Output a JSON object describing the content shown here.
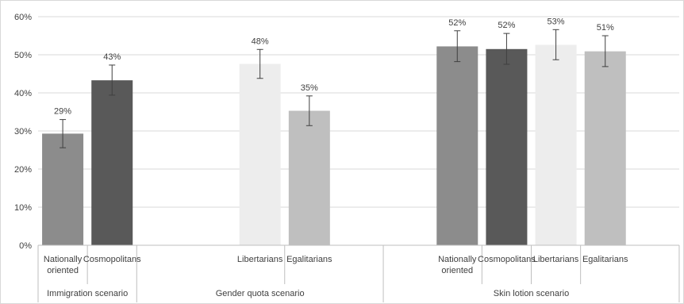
{
  "chart_data": {
    "type": "bar",
    "title": "",
    "xlabel": "",
    "ylabel": "",
    "ylim": [
      0,
      60
    ],
    "yticks": [
      "0%",
      "10%",
      "20%",
      "30%",
      "40%",
      "50%",
      "60%"
    ],
    "grid": true,
    "legend": "none",
    "groups": [
      {
        "name": "Immigration scenario",
        "bars": [
          {
            "category": [
              "Nationally",
              "oriented"
            ],
            "value": 29.3,
            "label": "29%",
            "err_low": 25.6,
            "err_high": 33.0,
            "color": "#8c8c8c"
          },
          {
            "category": [
              "Cosmopolitans"
            ],
            "value": 43.3,
            "label": "43%",
            "err_low": 39.4,
            "err_high": 47.3,
            "color": "#595959"
          }
        ]
      },
      {
        "name": "Gender quota scenario",
        "bars": [
          {
            "category": [
              "Libertarians"
            ],
            "value": 47.6,
            "label": "48%",
            "err_low": 43.8,
            "err_high": 51.4,
            "color": "#ededed"
          },
          {
            "category": [
              "Egalitarians"
            ],
            "value": 35.3,
            "label": "35%",
            "err_low": 31.4,
            "err_high": 39.2,
            "color": "#bfbfbf"
          }
        ]
      },
      {
        "name": "Skin lotion scenario",
        "bars": [
          {
            "category": [
              "Nationally",
              "oriented"
            ],
            "value": 52.2,
            "label": "52%",
            "err_low": 48.2,
            "err_high": 56.3,
            "color": "#8c8c8c"
          },
          {
            "category": [
              "Cosmopolitans"
            ],
            "value": 51.5,
            "label": "52%",
            "err_low": 47.5,
            "err_high": 55.6,
            "color": "#595959"
          },
          {
            "category": [
              "Libertarians"
            ],
            "value": 52.6,
            "label": "53%",
            "err_low": 48.7,
            "err_high": 56.6,
            "color": "#ededed"
          },
          {
            "category": [
              "Egalitarians"
            ],
            "value": 50.9,
            "label": "51%",
            "err_low": 46.9,
            "err_high": 55.0,
            "color": "#bfbfbf"
          }
        ]
      }
    ],
    "colors": {
      "gridline": "#d9d9d9",
      "axis": "#bfbfbf",
      "error_bar": "#404040",
      "text": "#404040"
    }
  }
}
